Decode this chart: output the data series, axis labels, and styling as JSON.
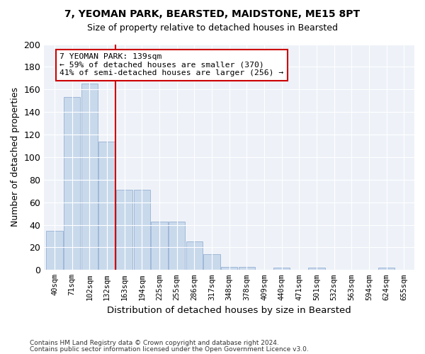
{
  "title1": "7, YEOMAN PARK, BEARSTED, MAIDSTONE, ME15 8PT",
  "title2": "Size of property relative to detached houses in Bearsted",
  "xlabel": "Distribution of detached houses by size in Bearsted",
  "ylabel": "Number of detached properties",
  "bin_labels": [
    "40sqm",
    "71sqm",
    "102sqm",
    "132sqm",
    "163sqm",
    "194sqm",
    "225sqm",
    "255sqm",
    "286sqm",
    "317sqm",
    "348sqm",
    "378sqm",
    "409sqm",
    "440sqm",
    "471sqm",
    "501sqm",
    "532sqm",
    "563sqm",
    "594sqm",
    "624sqm",
    "655sqm"
  ],
  "bar_values": [
    35,
    153,
    165,
    114,
    71,
    71,
    43,
    43,
    25,
    14,
    3,
    3,
    0,
    2,
    0,
    2,
    0,
    0,
    0,
    2,
    0
  ],
  "bar_color": "#c9d9ec",
  "bar_edge_color": "#a0b8d8",
  "vline_color": "#cc0000",
  "annotation_text": "7 YEOMAN PARK: 139sqm\n← 59% of detached houses are smaller (370)\n41% of semi-detached houses are larger (256) →",
  "annotation_box_color": "#ffffff",
  "annotation_box_edge_color": "#cc0000",
  "footer1": "Contains HM Land Registry data © Crown copyright and database right 2024.",
  "footer2": "Contains public sector information licensed under the Open Government Licence v3.0.",
  "bg_color": "#eef2f8",
  "ylim": [
    0,
    200
  ],
  "yticks": [
    0,
    20,
    40,
    60,
    80,
    100,
    120,
    140,
    160,
    180,
    200
  ]
}
